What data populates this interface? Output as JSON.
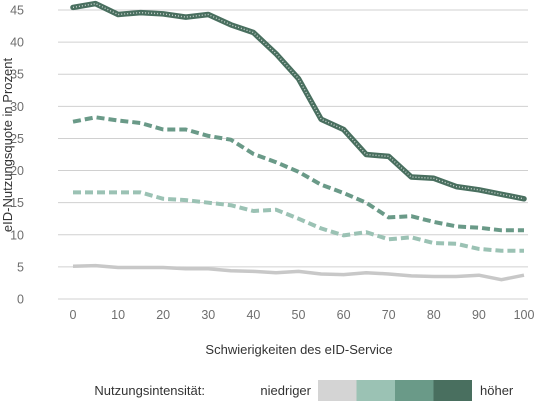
{
  "chart_data": {
    "type": "line",
    "xlabel": "Schwierigkeiten des eID-Service",
    "ylabel": "eID-Nutzungsquote in Prozent",
    "xlim": [
      0,
      100
    ],
    "ylim": [
      0,
      45
    ],
    "x_ticks": [
      0,
      10,
      20,
      30,
      40,
      50,
      60,
      70,
      80,
      90,
      100
    ],
    "y_ticks": [
      0,
      5,
      10,
      15,
      20,
      25,
      30,
      35,
      40,
      45
    ],
    "grid": "horizontal",
    "x": [
      0,
      5,
      10,
      15,
      20,
      25,
      30,
      35,
      40,
      45,
      50,
      55,
      60,
      65,
      70,
      75,
      80,
      85,
      90,
      95,
      100
    ],
    "series": [
      {
        "color": "#c8c8c8",
        "style": "solid",
        "values": [
          5.1,
          5.2,
          4.9,
          4.9,
          4.9,
          4.7,
          4.7,
          4.4,
          4.3,
          4.1,
          4.3,
          3.9,
          3.8,
          4.1,
          3.9,
          3.6,
          3.5,
          3.5,
          3.7,
          3.0,
          3.7
        ]
      },
      {
        "color": "#9bc2b4",
        "style": "dashed",
        "values": [
          16.6,
          16.6,
          16.6,
          16.6,
          15.6,
          15.4,
          15.0,
          14.6,
          13.7,
          13.9,
          12.5,
          11.0,
          9.9,
          10.4,
          9.3,
          9.6,
          8.7,
          8.6,
          7.8,
          7.5,
          7.5
        ]
      },
      {
        "color": "#6a9a88",
        "style": "dashed",
        "values": [
          27.6,
          28.3,
          27.8,
          27.4,
          26.4,
          26.4,
          25.4,
          24.8,
          22.6,
          21.3,
          19.8,
          17.8,
          16.5,
          15.0,
          12.7,
          12.9,
          12.0,
          11.3,
          11.1,
          10.7,
          10.7
        ]
      },
      {
        "color": "#496f5f",
        "style": "dotted",
        "values": [
          45.4,
          46.0,
          44.3,
          44.6,
          44.4,
          43.9,
          44.3,
          42.7,
          41.5,
          38.2,
          34.3,
          28.0,
          26.4,
          22.5,
          22.2,
          19.0,
          18.8,
          17.5,
          17.0,
          16.3,
          15.6
        ]
      }
    ],
    "legend": {
      "title": "Nutzungsintensität:",
      "low_label": "niedriger",
      "high_label": "höher",
      "swatch_colors": [
        "#d4d4d4",
        "#9bc2b4",
        "#6a9a88",
        "#496f5f"
      ],
      "placement": "bottom"
    }
  }
}
